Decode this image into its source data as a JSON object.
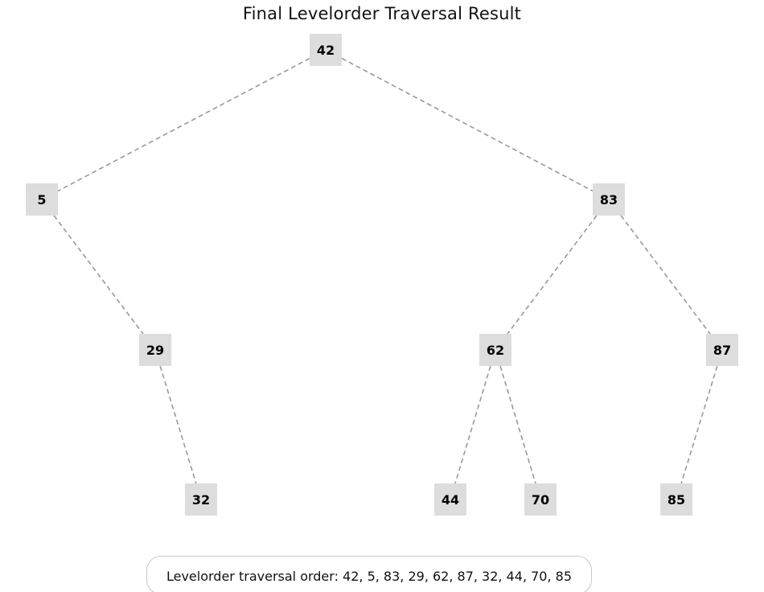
{
  "title": "Final Levelorder Traversal Result",
  "traversal_text": "Levelorder traversal order: 42, 5, 83, 29, 62, 87, 32, 44, 70, 85",
  "colors": {
    "node_fill": "#dddddd",
    "edge": "#999999",
    "text": "#000000"
  },
  "tree": {
    "nodes": [
      {
        "id": "n42",
        "label": "42"
      },
      {
        "id": "n5",
        "label": "5"
      },
      {
        "id": "n83",
        "label": "83"
      },
      {
        "id": "n29",
        "label": "29"
      },
      {
        "id": "n62",
        "label": "62"
      },
      {
        "id": "n87",
        "label": "87"
      },
      {
        "id": "n32",
        "label": "32"
      },
      {
        "id": "n44",
        "label": "44"
      },
      {
        "id": "n70",
        "label": "70"
      },
      {
        "id": "n85",
        "label": "85"
      }
    ],
    "edges": [
      [
        "n42",
        "n5"
      ],
      [
        "n42",
        "n83"
      ],
      [
        "n5",
        "n29"
      ],
      [
        "n83",
        "n62"
      ],
      [
        "n83",
        "n87"
      ],
      [
        "n29",
        "n32"
      ],
      [
        "n62",
        "n44"
      ],
      [
        "n62",
        "n70"
      ],
      [
        "n87",
        "n85"
      ]
    ]
  }
}
